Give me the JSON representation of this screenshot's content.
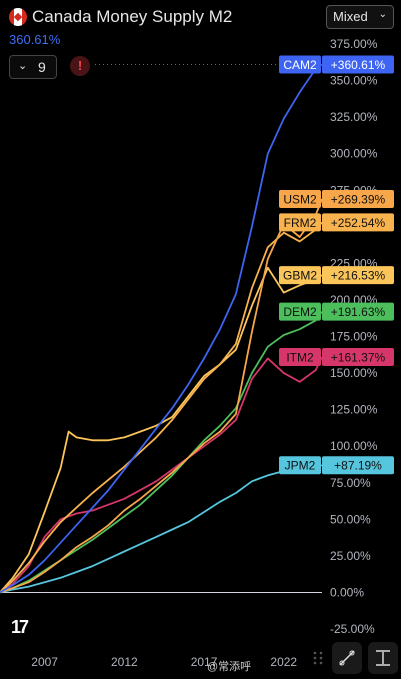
{
  "header": {
    "title": "Canada Money Supply M2",
    "change": "360.61%",
    "mode": "Mixed",
    "counter": "9",
    "alert": "!"
  },
  "watermark": "@常添呼",
  "chart_data": {
    "type": "line",
    "title": "Canada Money Supply M2",
    "ylim": [
      -25,
      375
    ],
    "y_ticks": [
      "375.00%",
      "350.00%",
      "325.00%",
      "300.00%",
      "275.00%",
      "250.00%",
      "225.00%",
      "200.00%",
      "175.00%",
      "150.00%",
      "125.00%",
      "100.00%",
      "75.00%",
      "50.00%",
      "25.00%",
      "0.00%",
      "-25.00%"
    ],
    "x_ticks": [
      "2007",
      "2012",
      "2017",
      "2022"
    ],
    "x_range": [
      2004.2,
      2024.9
    ],
    "series": [
      {
        "name": "CAM2",
        "label": "+360.61%",
        "color": "#3d64f2",
        "points": [
          [
            2004.2,
            0
          ],
          [
            2005,
            5
          ],
          [
            2006,
            12
          ],
          [
            2007,
            22
          ],
          [
            2008,
            34
          ],
          [
            2009,
            46
          ],
          [
            2010,
            58
          ],
          [
            2011,
            70
          ],
          [
            2012,
            84
          ],
          [
            2013,
            98
          ],
          [
            2014,
            112
          ],
          [
            2015,
            126
          ],
          [
            2016,
            142
          ],
          [
            2017,
            160
          ],
          [
            2018,
            180
          ],
          [
            2019,
            204
          ],
          [
            2020,
            250
          ],
          [
            2021,
            300
          ],
          [
            2022,
            324
          ],
          [
            2023,
            342
          ],
          [
            2024,
            358
          ],
          [
            2024.4,
            361
          ]
        ]
      },
      {
        "name": "USM2",
        "label": "+269.39%",
        "color": "#f7a64a",
        "points": [
          [
            2004.2,
            0
          ],
          [
            2005,
            3
          ],
          [
            2006,
            7
          ],
          [
            2007,
            14
          ],
          [
            2008,
            22
          ],
          [
            2009,
            31
          ],
          [
            2010,
            38
          ],
          [
            2011,
            46
          ],
          [
            2012,
            56
          ],
          [
            2013,
            64
          ],
          [
            2014,
            73
          ],
          [
            2015,
            82
          ],
          [
            2016,
            92
          ],
          [
            2017,
            102
          ],
          [
            2018,
            110
          ],
          [
            2019,
            122
          ],
          [
            2020,
            178
          ],
          [
            2021,
            228
          ],
          [
            2022,
            252
          ],
          [
            2023,
            243
          ],
          [
            2024,
            258
          ],
          [
            2024.4,
            269
          ]
        ]
      },
      {
        "name": "FRM2",
        "label": "+252.54%",
        "color": "#f8b24e",
        "points": [
          [
            2004.2,
            0
          ],
          [
            2005,
            8
          ],
          [
            2006,
            20
          ],
          [
            2007,
            35
          ],
          [
            2008,
            48
          ],
          [
            2009,
            58
          ],
          [
            2010,
            68
          ],
          [
            2011,
            77
          ],
          [
            2012,
            86
          ],
          [
            2013,
            96
          ],
          [
            2014,
            106
          ],
          [
            2015,
            118
          ],
          [
            2016,
            132
          ],
          [
            2017,
            146
          ],
          [
            2018,
            156
          ],
          [
            2019,
            170
          ],
          [
            2020,
            208
          ],
          [
            2021,
            236
          ],
          [
            2022,
            246
          ],
          [
            2023,
            240
          ],
          [
            2024,
            248
          ],
          [
            2024.4,
            253
          ]
        ]
      },
      {
        "name": "GBM2",
        "label": "+216.53%",
        "color": "#fbc55a",
        "points": [
          [
            2004.2,
            0
          ],
          [
            2005,
            10
          ],
          [
            2006,
            26
          ],
          [
            2007,
            55
          ],
          [
            2008,
            85
          ],
          [
            2008.5,
            110
          ],
          [
            2009,
            106
          ],
          [
            2010,
            104
          ],
          [
            2011,
            104
          ],
          [
            2012,
            106
          ],
          [
            2013,
            110
          ],
          [
            2014,
            114
          ],
          [
            2015,
            120
          ],
          [
            2016,
            134
          ],
          [
            2017,
            148
          ],
          [
            2018,
            156
          ],
          [
            2019,
            166
          ],
          [
            2020,
            196
          ],
          [
            2021,
            222
          ],
          [
            2022,
            205
          ],
          [
            2023,
            210
          ],
          [
            2024,
            214
          ],
          [
            2024.4,
            217
          ]
        ]
      },
      {
        "name": "DEM2",
        "label": "+191.63%",
        "color": "#4cbf5c",
        "points": [
          [
            2004.2,
            0
          ],
          [
            2005,
            3
          ],
          [
            2006,
            8
          ],
          [
            2007,
            15
          ],
          [
            2008,
            22
          ],
          [
            2009,
            29
          ],
          [
            2010,
            36
          ],
          [
            2011,
            44
          ],
          [
            2012,
            52
          ],
          [
            2013,
            60
          ],
          [
            2014,
            70
          ],
          [
            2015,
            80
          ],
          [
            2016,
            92
          ],
          [
            2017,
            104
          ],
          [
            2018,
            114
          ],
          [
            2019,
            126
          ],
          [
            2020,
            150
          ],
          [
            2021,
            168
          ],
          [
            2022,
            176
          ],
          [
            2023,
            180
          ],
          [
            2024,
            186
          ],
          [
            2024.4,
            192
          ]
        ]
      },
      {
        "name": "ITM2",
        "label": "+161.37%",
        "color": "#d6366a",
        "points": [
          [
            2004.2,
            0
          ],
          [
            2005,
            6
          ],
          [
            2006,
            18
          ],
          [
            2007,
            38
          ],
          [
            2008,
            50
          ],
          [
            2009,
            54
          ],
          [
            2010,
            56
          ],
          [
            2011,
            60
          ],
          [
            2012,
            64
          ],
          [
            2013,
            70
          ],
          [
            2014,
            76
          ],
          [
            2015,
            84
          ],
          [
            2016,
            92
          ],
          [
            2017,
            100
          ],
          [
            2018,
            108
          ],
          [
            2019,
            118
          ],
          [
            2020,
            146
          ],
          [
            2021,
            160
          ],
          [
            2022,
            150
          ],
          [
            2023,
            144
          ],
          [
            2024,
            152
          ],
          [
            2024.4,
            161
          ]
        ]
      },
      {
        "name": "JPM2",
        "label": "+87.19%",
        "color": "#56c6de",
        "points": [
          [
            2004.2,
            0
          ],
          [
            2005,
            2
          ],
          [
            2006,
            4
          ],
          [
            2007,
            7
          ],
          [
            2008,
            10
          ],
          [
            2009,
            14
          ],
          [
            2010,
            18
          ],
          [
            2011,
            23
          ],
          [
            2012,
            28
          ],
          [
            2013,
            33
          ],
          [
            2014,
            38
          ],
          [
            2015,
            43
          ],
          [
            2016,
            48
          ],
          [
            2017,
            55
          ],
          [
            2018,
            62
          ],
          [
            2019,
            68
          ],
          [
            2020,
            76
          ],
          [
            2021,
            80
          ],
          [
            2022,
            83
          ],
          [
            2023,
            85
          ],
          [
            2024,
            86
          ],
          [
            2024.4,
            87
          ]
        ]
      }
    ]
  }
}
